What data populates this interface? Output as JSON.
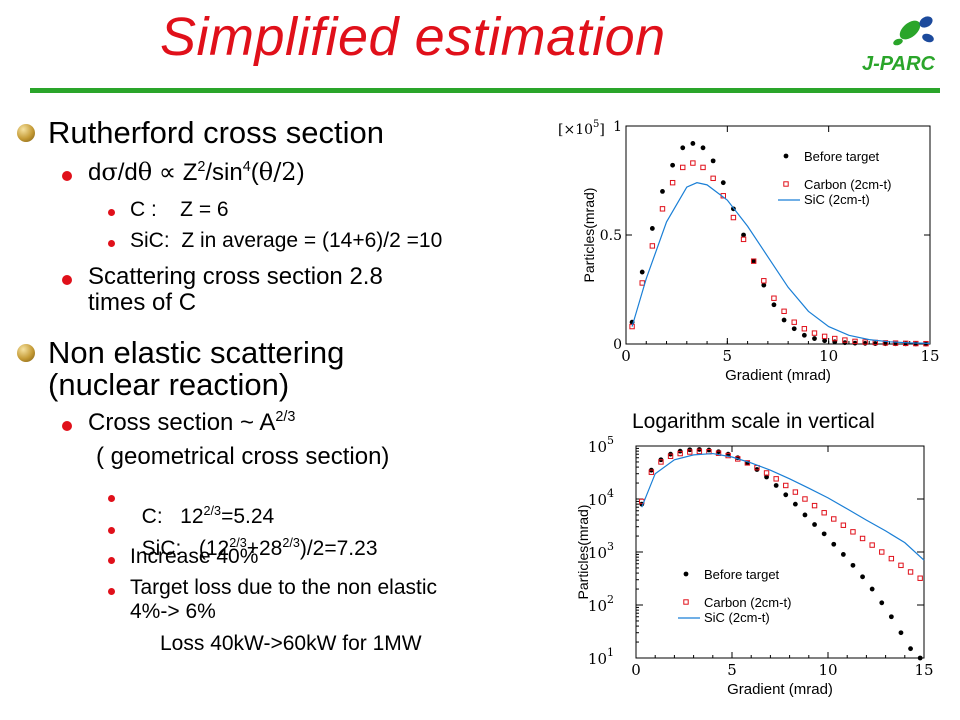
{
  "title": "Simplified estimation",
  "logo": {
    "text": "J-PARC",
    "color": "#2aa52a",
    "accent": "#1c4a9c"
  },
  "colors": {
    "title": "#e0101a",
    "rule": "#2aa52a",
    "bullet": "#e0101a"
  },
  "bullets": {
    "rutherford": {
      "heading": "Rutherford cross section",
      "formula": {
        "d": "d",
        "sigma": "σ",
        "slash": "/d",
        "theta": "θ",
        "prop": " ∝ Z",
        "exp2": "2",
        "sin": "/sin",
        "exp4": "4",
        "open": "(",
        "arg": "θ/2",
        "close": ")"
      },
      "c_line": "C :    Z = 6",
      "sic_line": "SiC:  Z in average = (14+6)/2 =10",
      "scatter_line1": "Scattering cross section 2.8",
      "scatter_line2": "times of C"
    },
    "nonelastic": {
      "heading_line1": "Non elastic scattering",
      "heading_line2": "(nuclear reaction)",
      "cross_prefix": "Cross section ~ A",
      "cross_exp": "2/3",
      "geometric": "( geometrical cross section)",
      "c_prefix": "C:   12",
      "c_exp": "2/3",
      "c_suffix": "=5.24",
      "sic_prefix": "SiC:   (12",
      "sic_exp1": "2/3",
      "sic_mid": "+28",
      "sic_exp2": "2/3",
      "sic_suffix": ")/2=7.23",
      "increase": "Increase 40%",
      "target_line1": "Target loss due to the non elastic",
      "target_line2": "4%-> 6%",
      "loss": "Loss 40kW->60kW for 1MW"
    }
  },
  "caption": "Logarithm scale in vertical",
  "chart_data": [
    {
      "type": "scatter",
      "scale": "linear",
      "multiplier_label": "[×10",
      "multiplier_exp": "5",
      "multiplier_close": "]",
      "xlabel": "Gradient (mrad)",
      "ylabel": "Particles(mrad)",
      "xlim": [
        0,
        15
      ],
      "ylim": [
        0,
        1
      ],
      "xticks": [
        "0",
        "5",
        "10",
        "15"
      ],
      "yticks": [
        "0",
        "0.5",
        "1"
      ],
      "legend": [
        "Before target",
        "Carbon (2cm-t)",
        "SiC (2cm-t)"
      ],
      "legend_placement": "top-right",
      "colors": {
        "before": "#000000",
        "carbon": "#e0101a",
        "sic": "#1a7fd6"
      },
      "x": [
        0.3,
        0.8,
        1.3,
        1.8,
        2.3,
        2.8,
        3.3,
        3.8,
        4.3,
        4.8,
        5.3,
        5.8,
        6.3,
        6.8,
        7.3,
        7.8,
        8.3,
        8.8,
        9.3,
        9.8,
        10.3,
        10.8,
        11.3,
        11.8,
        12.3,
        12.8,
        13.3,
        13.8,
        14.3,
        14.8
      ],
      "series": [
        {
          "name": "Before target",
          "marker": "dot",
          "values": [
            0.1,
            0.33,
            0.53,
            0.7,
            0.82,
            0.9,
            0.92,
            0.9,
            0.84,
            0.74,
            0.62,
            0.5,
            0.38,
            0.27,
            0.18,
            0.11,
            0.07,
            0.04,
            0.025,
            0.015,
            0.01,
            0.006,
            0.004,
            0.003,
            0.002,
            0.0015,
            0.001,
            0.0008,
            0.0005,
            0.0003
          ]
        },
        {
          "name": "Carbon (2cm-t)",
          "marker": "square",
          "values": [
            0.08,
            0.28,
            0.45,
            0.62,
            0.74,
            0.81,
            0.83,
            0.81,
            0.76,
            0.68,
            0.58,
            0.48,
            0.38,
            0.29,
            0.21,
            0.15,
            0.1,
            0.07,
            0.05,
            0.035,
            0.025,
            0.018,
            0.012,
            0.009,
            0.007,
            0.005,
            0.004,
            0.003,
            0.002,
            0.0015
          ]
        },
        {
          "name": "SiC (2cm-t)",
          "marker": "line",
          "x": [
            0.3,
            1,
            2,
            3,
            3.5,
            4,
            5,
            6,
            7,
            8,
            9,
            10,
            11,
            12,
            13,
            14,
            15
          ],
          "values": [
            0.08,
            0.3,
            0.56,
            0.72,
            0.74,
            0.73,
            0.66,
            0.54,
            0.4,
            0.26,
            0.15,
            0.08,
            0.04,
            0.02,
            0.01,
            0.005,
            0.003
          ]
        }
      ]
    },
    {
      "type": "scatter",
      "scale": "log",
      "xlabel": "Gradient (mrad)",
      "ylabel": "Particles(mrad)",
      "xlim": [
        0,
        15
      ],
      "ylim": [
        10,
        100000
      ],
      "xticks": [
        "0",
        "5",
        "10",
        "15"
      ],
      "yticks": [
        {
          "base": "10",
          "exp": "1"
        },
        {
          "base": "10",
          "exp": "2"
        },
        {
          "base": "10",
          "exp": "3"
        },
        {
          "base": "10",
          "exp": "4"
        },
        {
          "base": "10",
          "exp": "5"
        }
      ],
      "legend": [
        "Before target",
        "Carbon (2cm-t)",
        "SiC (2cm-t)"
      ],
      "legend_placement": "bottom-left",
      "colors": {
        "before": "#000000",
        "carbon": "#e0101a",
        "sic": "#1a7fd6"
      },
      "x": [
        0.3,
        0.8,
        1.3,
        1.8,
        2.3,
        2.8,
        3.3,
        3.8,
        4.3,
        4.8,
        5.3,
        5.8,
        6.3,
        6.8,
        7.3,
        7.8,
        8.3,
        8.8,
        9.3,
        9.8,
        10.3,
        10.8,
        11.3,
        11.8,
        12.3,
        12.8,
        13.3,
        13.8,
        14.3,
        14.8
      ],
      "series": [
        {
          "name": "Before target",
          "marker": "dot",
          "values": [
            8000,
            35000,
            55000,
            70000,
            80000,
            85000,
            86000,
            84000,
            78000,
            70000,
            60000,
            48000,
            36000,
            26000,
            18000,
            12000,
            8000,
            5000,
            3300,
            2200,
            1400,
            900,
            560,
            340,
            200,
            110,
            60,
            30,
            15,
            10
          ]
        },
        {
          "name": "Carbon (2cm-t)",
          "marker": "square",
          "values": [
            9000,
            32000,
            50000,
            64000,
            72000,
            77000,
            79000,
            78000,
            73000,
            66000,
            57000,
            48000,
            39000,
            31000,
            24000,
            18000,
            13500,
            10000,
            7500,
            5500,
            4200,
            3200,
            2400,
            1800,
            1350,
            1000,
            750,
            560,
            420,
            320
          ]
        },
        {
          "name": "SiC (2cm-t)",
          "marker": "line",
          "x": [
            0.3,
            1,
            2,
            3,
            4,
            5,
            6,
            7,
            8,
            9,
            10,
            11,
            12,
            13,
            14,
            15
          ],
          "values": [
            7000,
            30000,
            55000,
            68000,
            72000,
            62000,
            48000,
            35000,
            24000,
            16000,
            10500,
            6500,
            4000,
            2500,
            1500,
            700
          ]
        }
      ]
    }
  ]
}
